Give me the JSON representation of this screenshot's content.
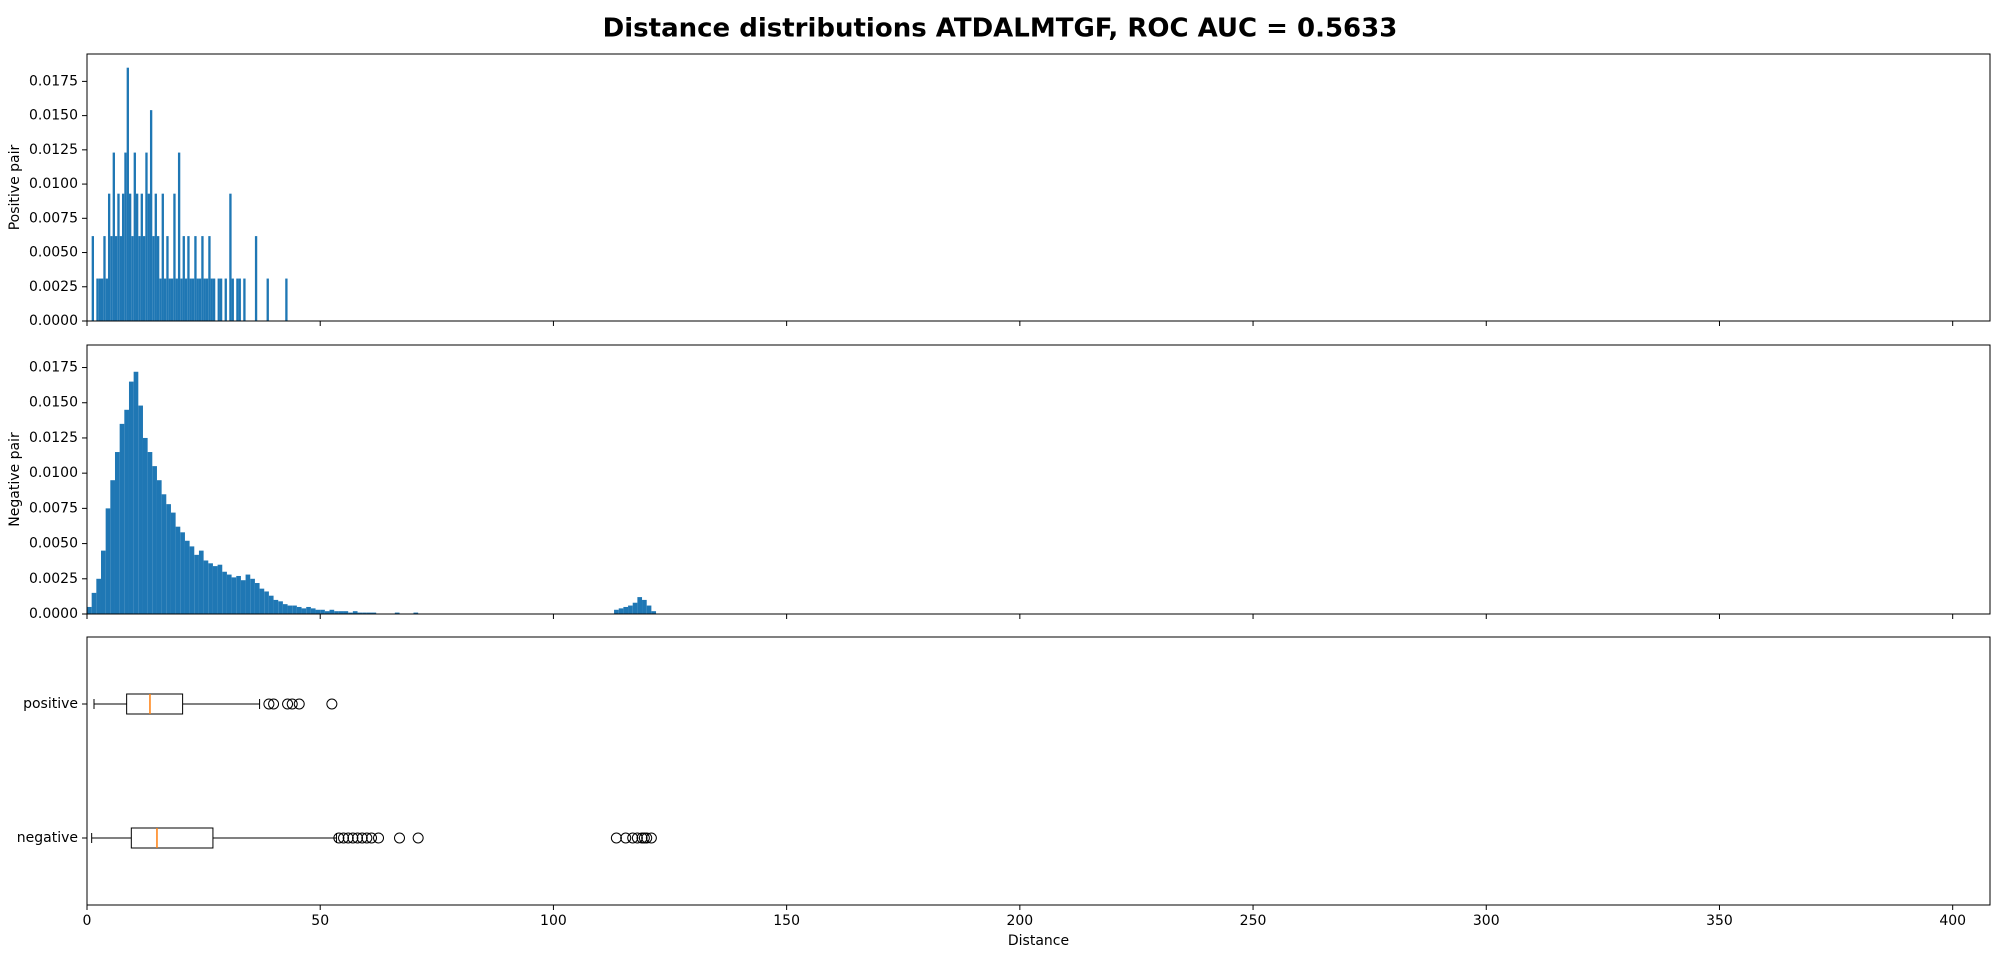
{
  "chart_data": [
    {
      "type": "histogram",
      "title": "Distance distributions ATDALMTGF, ROC AUC = 0.5633",
      "ylabel": "Positive pair",
      "color": "#1f77b4",
      "bins": [
        0,
        0.5,
        1,
        1.5,
        2,
        2.5,
        3,
        3.5,
        4,
        4.5,
        5,
        5.5,
        6,
        6.5,
        7,
        7.5,
        8,
        8.5,
        9,
        9.5,
        10,
        10.5,
        11,
        11.5,
        12,
        12.5,
        13,
        13.5,
        14,
        14.5,
        15,
        15.5,
        16,
        16.5,
        17,
        17.5,
        18,
        18.5,
        19,
        19.5,
        20,
        20.5,
        21,
        21.5,
        22,
        22.5,
        23,
        23.5,
        24,
        24.5,
        25,
        25.5,
        26,
        26.5,
        27,
        27.5,
        28,
        28.5,
        29,
        29.5,
        30,
        30.5,
        31,
        31.5,
        32,
        32.5,
        33,
        33.5,
        34,
        34.5,
        35,
        35.5,
        36,
        36.5,
        37,
        37.5,
        38,
        38.5,
        39,
        39.5,
        40,
        40.5,
        41,
        41.5,
        42,
        42.5,
        43,
        43.5,
        44
      ],
      "values": [
        0,
        0,
        0.0062,
        0,
        0.0031,
        0.0031,
        0.0031,
        0.0062,
        0.0031,
        0.0093,
        0.0062,
        0.0123,
        0.0062,
        0.0093,
        0.0062,
        0.0093,
        0.0123,
        0.0185,
        0.0093,
        0.0062,
        0.0123,
        0.0093,
        0.0062,
        0.0093,
        0.0062,
        0.0123,
        0.0093,
        0.0154,
        0.0062,
        0.0093,
        0.0062,
        0.0031,
        0.0093,
        0.0031,
        0.0062,
        0.0031,
        0.0031,
        0.0093,
        0.0031,
        0.0123,
        0.0031,
        0.0062,
        0.0031,
        0.0062,
        0.0031,
        0.0031,
        0.0062,
        0.0031,
        0.0031,
        0.0062,
        0.0031,
        0.0031,
        0.0062,
        0.0031,
        0.0031,
        0,
        0.0031,
        0.0031,
        0,
        0.0031,
        0,
        0.0093,
        0.0031,
        0,
        0.0031,
        0.0031,
        0,
        0.0031,
        0,
        0,
        0,
        0,
        0.0062,
        0,
        0,
        0,
        0,
        0.0031,
        0,
        0,
        0,
        0,
        0,
        0,
        0,
        0.0031,
        0,
        0
      ],
      "xlim": [
        0,
        408
      ],
      "ylim": [
        0,
        0.0195
      ],
      "yticks": [
        {
          "value": 0,
          "label": "0.0000"
        },
        0.0025,
        {
          "value": 0.005,
          "label": "0.0050"
        },
        0.0075,
        {
          "value": 0.01,
          "label": "0.0100"
        },
        0.0125,
        {
          "value": 0.015,
          "label": "0.0150"
        },
        0.0175
      ]
    },
    {
      "type": "histogram",
      "ylabel": "Negative pair",
      "color": "#1f77b4",
      "bins": [
        0,
        1,
        2,
        3,
        4,
        5,
        6,
        7,
        8,
        9,
        10,
        11,
        12,
        13,
        14,
        15,
        16,
        17,
        18,
        19,
        20,
        21,
        22,
        23,
        24,
        25,
        26,
        27,
        28,
        29,
        30,
        31,
        32,
        33,
        34,
        35,
        36,
        37,
        38,
        39,
        40,
        41,
        42,
        43,
        44,
        45,
        46,
        47,
        48,
        49,
        50,
        51,
        52,
        53,
        54,
        55,
        56,
        57,
        58,
        59,
        60,
        61,
        62,
        63,
        64,
        65,
        66,
        67,
        68,
        69,
        70,
        71,
        72,
        73,
        74,
        75,
        76,
        77,
        78,
        79,
        80,
        81,
        82,
        83,
        84,
        85,
        86,
        87,
        88,
        89,
        90,
        91,
        92,
        93,
        94,
        95,
        96,
        97,
        98,
        99,
        100,
        101,
        102,
        103,
        104,
        105,
        106,
        107,
        108,
        109,
        110,
        111,
        112,
        113,
        114,
        115,
        116,
        117,
        118,
        119,
        120,
        121,
        122
      ],
      "values": [
        0.0005,
        0.0015,
        0.0025,
        0.0045,
        0.0075,
        0.0095,
        0.0115,
        0.0135,
        0.0145,
        0.0165,
        0.0172,
        0.0148,
        0.0125,
        0.0115,
        0.0105,
        0.0095,
        0.0085,
        0.0078,
        0.0072,
        0.0062,
        0.0058,
        0.0052,
        0.0048,
        0.0042,
        0.0045,
        0.0038,
        0.0036,
        0.0034,
        0.0035,
        0.003,
        0.0028,
        0.0026,
        0.0027,
        0.0024,
        0.0028,
        0.0025,
        0.0022,
        0.0018,
        0.0016,
        0.0013,
        0.001,
        0.0009,
        0.0007,
        0.0006,
        0.0006,
        0.0005,
        0.0004,
        0.0005,
        0.0004,
        0.0003,
        0.0003,
        0.0002,
        0.0003,
        0.0002,
        0.0002,
        0.0002,
        0.0001,
        0.0002,
        0.0001,
        0.0001,
        0.0001,
        0.0001,
        0,
        0,
        0,
        0,
        0.0001,
        0,
        0,
        0,
        0.0001,
        0,
        0,
        0,
        0,
        0,
        0,
        0,
        0,
        0,
        0,
        0,
        0,
        0,
        0,
        0,
        0,
        0,
        0,
        0,
        0,
        0,
        0,
        0,
        0,
        0,
        0,
        0,
        0,
        0,
        0,
        0,
        0,
        0,
        0,
        0,
        0,
        0,
        0,
        0,
        0,
        0,
        0,
        0.0003,
        0.0004,
        0.0005,
        0.0006,
        0.0008,
        0.0012,
        0.001,
        0.0006,
        0.0002
      ],
      "xlim": [
        0,
        408
      ],
      "ylim": [
        0,
        0.0191
      ],
      "yticks": [
        {
          "value": 0,
          "label": "0.0000"
        },
        0.0025,
        {
          "value": 0.005,
          "label": "0.0050"
        },
        0.0075,
        {
          "value": 0.01,
          "label": "0.0100"
        },
        0.0125,
        {
          "value": 0.015,
          "label": "0.0150"
        },
        0.0175
      ]
    },
    {
      "type": "boxplot",
      "xlabel": "Distance",
      "categories": [
        "negative",
        "positive"
      ],
      "color": "#000000",
      "median_color": "#ff7f0e",
      "boxes": [
        {
          "whislo": 1,
          "q1": 9.5,
          "med": 15,
          "q3": 27,
          "whishi": 53.5,
          "fliers": [
            54,
            55,
            56,
            57,
            58,
            59,
            60,
            61,
            62.5,
            67,
            71,
            113.5,
            115.5,
            117,
            118,
            119,
            119.5,
            120,
            121
          ]
        },
        {
          "whislo": 1.5,
          "q1": 8.5,
          "med": 13.5,
          "q3": 20.5,
          "whishi": 37,
          "fliers": [
            39,
            40,
            43,
            44,
            45.5,
            52.5
          ]
        }
      ],
      "xlim": [
        0,
        408
      ],
      "ylim": [
        0.5,
        2.5
      ],
      "xticks": [
        0,
        50,
        100,
        150,
        200,
        250,
        300,
        350,
        400
      ]
    }
  ]
}
